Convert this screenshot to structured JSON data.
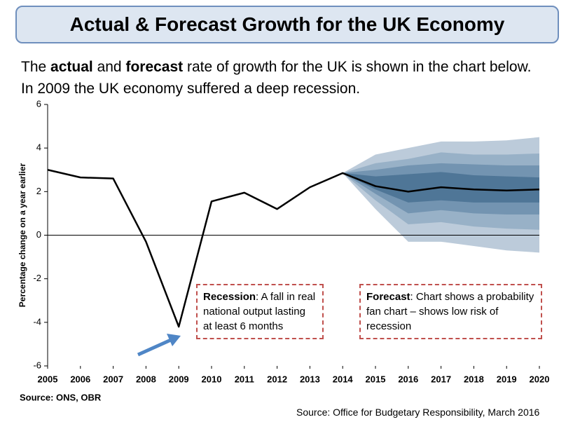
{
  "header": {
    "title": "Actual & Forecast Growth for the UK Economy"
  },
  "intro": [
    [
      {
        "text": "The "
      },
      {
        "text": "actual",
        "bold": true
      },
      {
        "text": " and "
      },
      {
        "text": "forecast",
        "bold": true
      },
      {
        "text": " rate of growth for the UK is shown in the chart below."
      }
    ],
    [
      {
        "text": "In 2009 the UK economy suffered a deep recession."
      }
    ]
  ],
  "chart_data": {
    "type": "line",
    "y_label": "Percentage change on a year earlier",
    "x": [
      2005,
      2006,
      2007,
      2008,
      2009,
      2010,
      2011,
      2012,
      2013,
      2014,
      2015,
      2016,
      2017,
      2018,
      2019,
      2020
    ],
    "series": [
      {
        "color": "#000000",
        "values": [
          3.0,
          2.65,
          2.6,
          -0.3,
          -4.2,
          1.55,
          1.95,
          1.2,
          2.2,
          2.85,
          2.25,
          2.0,
          2.2,
          2.1,
          2.05,
          2.1
        ]
      }
    ],
    "fan_x": [
      2014,
      2015,
      2016,
      2017,
      2018,
      2019,
      2020
    ],
    "fan": [
      {
        "color": "#bccbda",
        "upper": [
          2.85,
          3.7,
          4.0,
          4.3,
          4.3,
          4.35,
          4.5
        ],
        "lower": [
          2.85,
          1.2,
          -0.3,
          -0.3,
          -0.5,
          -0.7,
          -0.8
        ]
      },
      {
        "color": "#98b1c7",
        "upper": [
          2.85,
          3.3,
          3.5,
          3.8,
          3.7,
          3.7,
          3.75
        ],
        "lower": [
          2.85,
          1.6,
          0.5,
          0.6,
          0.4,
          0.3,
          0.25
        ]
      },
      {
        "color": "#7394b1",
        "upper": [
          2.85,
          3.0,
          3.2,
          3.3,
          3.25,
          3.2,
          3.2
        ],
        "lower": [
          2.85,
          1.9,
          1.0,
          1.15,
          1.0,
          0.95,
          0.95
        ]
      },
      {
        "color": "#4f7697",
        "upper": [
          2.85,
          2.7,
          2.8,
          2.9,
          2.75,
          2.7,
          2.65
        ],
        "lower": [
          2.85,
          2.1,
          1.5,
          1.6,
          1.5,
          1.5,
          1.5
        ]
      }
    ],
    "xlim": [
      2005,
      2020
    ],
    "xticks": [
      2005,
      2006,
      2007,
      2008,
      2009,
      2010,
      2011,
      2012,
      2013,
      2014,
      2015,
      2016,
      2017,
      2018,
      2019,
      2020
    ],
    "ylim": [
      -6,
      6
    ],
    "yticks": [
      -6,
      -4,
      -2,
      0,
      2,
      4,
      6
    ],
    "grid": false,
    "annotations": [
      {
        "title": "Recession",
        "text": ": A fall in real national output lasting at least 6 months"
      },
      {
        "title": "Forecast",
        "text": ": Chart shows a probability fan chart – shows low risk of recession"
      }
    ],
    "source_left": "Source: ONS, OBR"
  },
  "footer": {
    "source": "Source: Office for Budgetary Responsibility, March 2016"
  }
}
